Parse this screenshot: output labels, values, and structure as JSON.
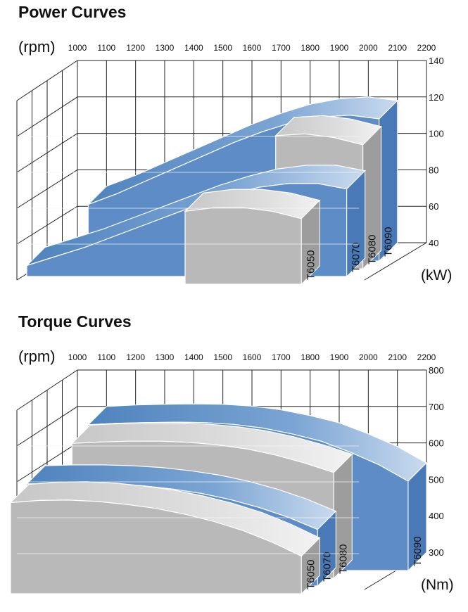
{
  "chart_data": [
    {
      "type": "area",
      "title": "Power Curves",
      "xlabel": "(rpm)",
      "ylabel": "(kW)",
      "x": [
        1000,
        1100,
        1200,
        1300,
        1400,
        1500,
        1600,
        1700,
        1800,
        1900,
        2000,
        2100,
        2200
      ],
      "xlim": [
        1000,
        2200
      ],
      "ylim": [
        40,
        140
      ],
      "yticks": [
        40,
        60,
        80,
        100,
        120,
        140
      ],
      "grid": true,
      "series": [
        {
          "name": "T6090",
          "values": [
            null,
            71,
            77,
            84,
            91,
            98,
            105,
            111,
            116,
            119,
            120,
            118,
            null
          ]
        },
        {
          "name": "T6080",
          "values": [
            null,
            null,
            null,
            null,
            null,
            null,
            null,
            null,
            113,
            114,
            112,
            108,
            null
          ]
        },
        {
          "name": "T6070",
          "values": [
            46,
            51,
            56,
            62,
            68,
            74,
            80,
            85,
            89,
            91,
            91,
            88,
            null
          ]
        },
        {
          "name": "T6050",
          "values": [
            null,
            null,
            null,
            null,
            null,
            null,
            80,
            82,
            82,
            80,
            76,
            null,
            null
          ]
        }
      ]
    },
    {
      "type": "area",
      "title": "Torque Curves",
      "xlabel": "(rpm)",
      "ylabel": "(Nm)",
      "x": [
        1000,
        1100,
        1200,
        1300,
        1400,
        1500,
        1600,
        1700,
        1800,
        1900,
        2000,
        2100,
        2200
      ],
      "xlim": [
        1000,
        2200
      ],
      "ylim": [
        300,
        800
      ],
      "yticks": [
        300,
        400,
        500,
        600,
        700,
        800
      ],
      "grid": true,
      "series": [
        {
          "name": "T6090",
          "values": [
            null,
            700,
            704,
            706,
            707,
            706,
            701,
            691,
            675,
            655,
            625,
            590,
            545
          ]
        },
        {
          "name": "T6080",
          "values": [
            null,
            670,
            674,
            676,
            676,
            673,
            666,
            655,
            638,
            616,
            590,
            null,
            null
          ]
        },
        {
          "name": "T6070",
          "values": [
            580,
            582,
            582,
            580,
            575,
            566,
            554,
            537,
            515,
            488,
            455,
            null,
            null
          ]
        },
        {
          "name": "T6050",
          "values": [
            550,
            556,
            557,
            553,
            545,
            534,
            518,
            498,
            473,
            441,
            403,
            null,
            null
          ]
        }
      ]
    }
  ]
}
